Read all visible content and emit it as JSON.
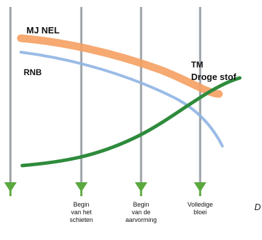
{
  "labels": {
    "mj_nel": "MJ NEL",
    "rnb": "RNB",
    "tm_line1": "TM",
    "tm_line2": "Droge stof"
  },
  "stages": [
    {
      "line1": "",
      "line2": "",
      "line3": ""
    },
    {
      "line1": "Begin",
      "line2": "van het",
      "line3": "schieten"
    },
    {
      "line1": "Begin",
      "line2": "van de",
      "line3": "aarvorming"
    },
    {
      "line1": "Volledige",
      "line2": "bloei",
      "line3": ""
    }
  ],
  "cut_text": "D",
  "colors": {
    "orange": "#f5a062",
    "blue": "#8fb4e3",
    "green": "#2e8b3c",
    "arrow_shaft": "#9aa0a6",
    "arrow_head": "#5aa83e"
  },
  "icons": {
    "stage_arrow": "arrow-down-icon"
  }
}
